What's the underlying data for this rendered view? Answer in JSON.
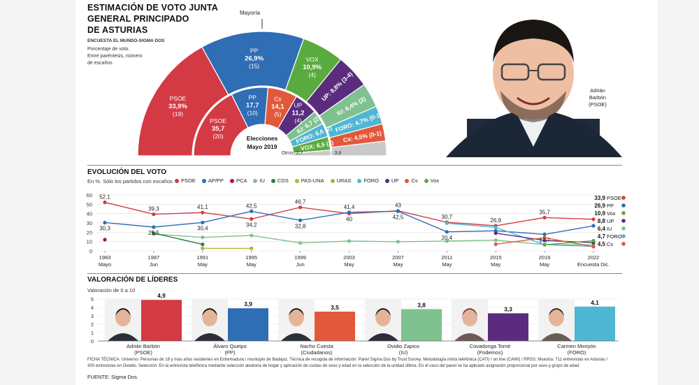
{
  "title_lines": [
    "ESTIMACIÓN DE VOTO JUNTA",
    "GENERAL PRINCIPADO",
    "DE ASTURIAS"
  ],
  "source_top": "ENCUESTA EL MUNDO-SIGMA DOS",
  "note_lines": [
    "Porcentaje de voto.",
    "Entre paréntesis, número",
    "de escaños"
  ],
  "majority_label": "Mayoría",
  "center_label": [
    "Elecciones",
    "Mayo 2019"
  ],
  "photo_caption": [
    "Adrián",
    "Barbón",
    "(PSOE)"
  ],
  "evolution_title": "EVOLUCIÓN DEL VOTO",
  "evolution_sub": "En %. Sólo los partidos con escaños",
  "leaders_title": "VALORACIÓN  DE LÍDERES",
  "leaders_sub": "Valoración de 0 a 10",
  "footer_text": "FICHA TÉCNICA. Universo: Personas de 18 y más años residentes en Extremadura / municipio de Badajoz. Técnica de recogida de información: Panel Sigma Dos by Trust Survey. Metodología mixta telefónica (CATI) / on line (CAWI) / RRSS. Muestra: 711 entrevistas en Asturias / 300 entrevistas en Oviedo. Selección: En la entrevista telefónica mediante selección aleatoria de hogar y aplicación de cuotas de sexo y edad en la selección de la unidad última. En el caso del panel se ha aplicado asignación proporcional por sexo y grupo de edad.",
  "footer_source": "FUENTE: Sigma Dos.",
  "colors": {
    "PSOE": "#d43a44",
    "PP": "#2f6db5",
    "VOX": "#5aab3f",
    "UP": "#5b2c7e",
    "IU": "#7fc18f",
    "FORO": "#4fb6d3",
    "Cs": "#e2583a",
    "Otros": "#c9c9c9",
    "PCA": "#b3152b",
    "CDS": "#2e7d3c",
    "PASUNA": "#b5b23a",
    "URAS": "#a3b44a"
  },
  "chart_data": [
    {
      "type": "pie",
      "subtype": "semicircle",
      "title": "ESTIMACIÓN DE VOTO JUNTA GENERAL PRINCIPADO DE ASTURIAS",
      "ring": "outer (estimate)",
      "slices": [
        {
          "label": "PSOE",
          "value": 33.9,
          "seats": "(19)",
          "color": "#d43a44"
        },
        {
          "label": "PP",
          "value": 26.9,
          "seats": "(15)",
          "color": "#2f6db5"
        },
        {
          "label": "VOX",
          "value": 10.9,
          "seats": "(4)",
          "color": "#5aab3f"
        },
        {
          "label": "UP",
          "value": 8.8,
          "seats": "(3-4)",
          "color": "#5b2c7e"
        },
        {
          "label": "IU",
          "value": 6.4,
          "seats": "(2)",
          "color": "#7fc18f"
        },
        {
          "label": "FORO",
          "value": 4.7,
          "seats": "(0-1)",
          "color": "#4fb6d3"
        },
        {
          "label": "Cs",
          "value": 4.5,
          "seats": "(0-1)",
          "color": "#e2583a"
        },
        {
          "label": "Otros",
          "value": 3.8,
          "seats": "",
          "color": "#c9c9c9"
        }
      ]
    },
    {
      "type": "pie",
      "subtype": "semicircle",
      "ring": "inner (Elecciones Mayo 2019)",
      "slices": [
        {
          "label": "PSOE",
          "value": 35.7,
          "seats": "(20)",
          "color": "#d43a44"
        },
        {
          "label": "PP",
          "value": 17.7,
          "seats": "(10)",
          "color": "#2f6db5"
        },
        {
          "label": "Cs",
          "value": 14.1,
          "seats": "(5)",
          "color": "#e2583a"
        },
        {
          "label": "UP",
          "value": 11.2,
          "seats": "(4)",
          "color": "#5b2c7e"
        },
        {
          "label": "IU",
          "value": 6.7,
          "seats": "(2)",
          "color": "#7fc18f"
        },
        {
          "label": "FORO",
          "value": 6.6,
          "seats": "(2)",
          "color": "#4fb6d3"
        },
        {
          "label": "VOX",
          "value": 6.5,
          "seats": "(2)",
          "color": "#5aab3f"
        },
        {
          "label": "Otros",
          "value": 2.7,
          "seats": "",
          "color": "#c9c9c9"
        }
      ]
    },
    {
      "type": "line",
      "title": "EVOLUCIÓN DEL VOTO",
      "ylabel": "En %",
      "ylim": [
        0,
        60
      ],
      "yticks": [
        0,
        10,
        20,
        30,
        40,
        50,
        60
      ],
      "x_labels": [
        [
          "1983",
          "Mayo"
        ],
        [
          "1987",
          "Jun"
        ],
        [
          "1991",
          "May"
        ],
        [
          "1995",
          "May"
        ],
        [
          "1999",
          "Jun"
        ],
        [
          "2003",
          "May"
        ],
        [
          "2007",
          "May"
        ],
        [
          "2011",
          "May"
        ],
        [
          "2015",
          "May"
        ],
        [
          "2019",
          "May"
        ],
        [
          "2022",
          "Encuesta Dic."
        ]
      ],
      "legend": [
        "PSOE",
        "AP/PP",
        "PCA",
        "IU",
        "CDS",
        "PAS-UNA",
        "URAS",
        "FORO",
        "UP",
        "Cs",
        "Vox"
      ],
      "series": [
        {
          "name": "PSOE",
          "color": "#d43a44",
          "values": [
            52.1,
            39.3,
            41.1,
            34.2,
            46.7,
            40,
            43,
            30.7,
            26.9,
            35.7,
            33.9
          ]
        },
        {
          "name": "AP/PP",
          "color": "#2f6db5",
          "values": [
            30.3,
            25.5,
            30.4,
            42.5,
            32.8,
            41.4,
            42.5,
            20.4,
            21.5,
            17.7,
            26.9
          ]
        },
        {
          "name": "PCA",
          "color": "#b3152b",
          "values": [
            12,
            null,
            null,
            null,
            null,
            null,
            null,
            null,
            null,
            null,
            null
          ]
        },
        {
          "name": "IU",
          "color": "#7fc18f",
          "values": [
            null,
            18,
            14.5,
            16.5,
            8.5,
            10.5,
            9.8,
            10.5,
            11.5,
            6.7,
            6.4
          ]
        },
        {
          "name": "CDS",
          "color": "#2e7d3c",
          "values": [
            null,
            19,
            7,
            null,
            null,
            null,
            null,
            null,
            null,
            null,
            null
          ]
        },
        {
          "name": "PAS-UNA",
          "color": "#b5b23a",
          "values": [
            null,
            null,
            2.7,
            2.7,
            null,
            null,
            null,
            null,
            null,
            null,
            null
          ]
        },
        {
          "name": "URAS",
          "color": "#a3b44a",
          "values": [
            null,
            null,
            null,
            null,
            null,
            null,
            null,
            null,
            null,
            null,
            null
          ]
        },
        {
          "name": "FORO",
          "color": "#4fb6d3",
          "values": [
            null,
            null,
            null,
            null,
            null,
            null,
            null,
            29.7,
            25.1,
            6.6,
            4.7
          ]
        },
        {
          "name": "UP",
          "color": "#5b2c7e",
          "values": [
            null,
            null,
            null,
            null,
            null,
            null,
            null,
            null,
            19,
            11.2,
            8.8
          ]
        },
        {
          "name": "Cs",
          "color": "#e2583a",
          "values": [
            null,
            null,
            null,
            null,
            null,
            null,
            null,
            null,
            7.1,
            14.1,
            4.5
          ]
        },
        {
          "name": "Vox",
          "color": "#5aab3f",
          "values": [
            null,
            null,
            null,
            null,
            null,
            null,
            null,
            null,
            null,
            6.5,
            10.9
          ]
        }
      ],
      "point_labels": [
        {
          "series": "PSOE",
          "i": 0,
          "text": "52,1"
        },
        {
          "series": "PSOE",
          "i": 1,
          "text": "39,3"
        },
        {
          "series": "PSOE",
          "i": 2,
          "text": "41,1"
        },
        {
          "series": "PSOE",
          "i": 3,
          "text": "34,2"
        },
        {
          "series": "PSOE",
          "i": 4,
          "text": "46,7"
        },
        {
          "series": "PSOE",
          "i": 5,
          "text": "40"
        },
        {
          "series": "PSOE",
          "i": 6,
          "text": "43"
        },
        {
          "series": "PSOE",
          "i": 7,
          "text": "30,7"
        },
        {
          "series": "PSOE",
          "i": 8,
          "text": "26,9"
        },
        {
          "series": "PSOE",
          "i": 9,
          "text": "35,7"
        },
        {
          "series": "AP/PP",
          "i": 0,
          "text": "30,3"
        },
        {
          "series": "AP/PP",
          "i": 1,
          "text": "25,5"
        },
        {
          "series": "AP/PP",
          "i": 2,
          "text": "30,4"
        },
        {
          "series": "AP/PP",
          "i": 3,
          "text": "42,5"
        },
        {
          "series": "AP/PP",
          "i": 4,
          "text": "32,8"
        },
        {
          "series": "AP/PP",
          "i": 5,
          "text": "41,4"
        },
        {
          "series": "AP/PP",
          "i": 6,
          "text": "42,5"
        },
        {
          "series": "AP/PP",
          "i": 7,
          "text": "20,4"
        },
        {
          "series": "AP/PP",
          "i": 9,
          "text": "17,7"
        }
      ],
      "end_labels": [
        {
          "value": "33,9",
          "name": "PSOE",
          "color": "#d43a44"
        },
        {
          "value": "26,9",
          "name": "PP",
          "color": "#2f6db5"
        },
        {
          "value": "10,9",
          "name": "Vox",
          "color": "#5aab3f"
        },
        {
          "value": "8,8",
          "name": "UP",
          "color": "#5b2c7e"
        },
        {
          "value": "6,4",
          "name": "IU",
          "color": "#7fc18f"
        },
        {
          "value": "4,7",
          "name": "FORO",
          "color": "#4fb6d3"
        },
        {
          "value": "4,5",
          "name": "Cs",
          "color": "#e2583a"
        }
      ]
    },
    {
      "type": "bar",
      "title": "VALORACIÓN  DE LÍDERES",
      "ylabel": "Valoración de 0 a 10",
      "ylim": [
        0,
        5
      ],
      "yticks": [
        0,
        1,
        2,
        3,
        4,
        5
      ],
      "categories": [
        [
          "Adrián Barbón",
          "(PSOE)"
        ],
        [
          "Álvaro Queipo",
          "(PP)"
        ],
        [
          "Nacho Cuesta",
          "(Ciudadanos)"
        ],
        [
          "Ovidio Zapico",
          "(IU)"
        ],
        [
          "Covadonga Tomé",
          "(Podemos)"
        ],
        [
          "Carmen Moriyón",
          "(FORO)"
        ]
      ],
      "values": [
        4.9,
        3.9,
        3.5,
        3.8,
        3.3,
        4.1
      ],
      "value_labels": [
        "4,9",
        "3,9",
        "3,5",
        "3,8",
        "3,3",
        "4,1"
      ],
      "colors": [
        "#d43a44",
        "#2f6db5",
        "#e2583a",
        "#7fc18f",
        "#5b2c7e",
        "#4fb6d3"
      ]
    }
  ]
}
